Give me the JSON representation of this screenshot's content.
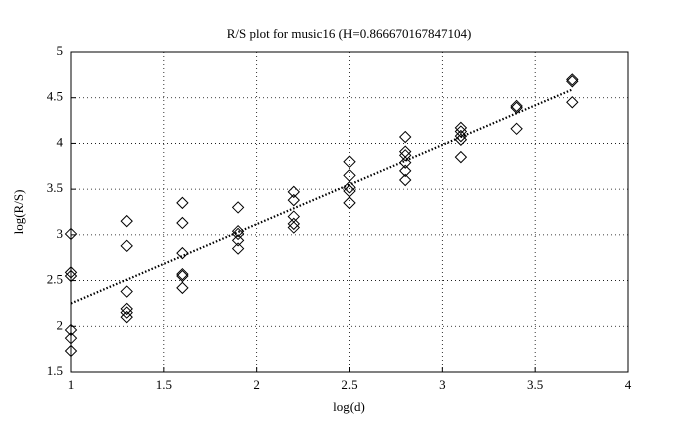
{
  "chart_data": {
    "type": "scatter",
    "title": "R/S plot for music16 (H=0.866670167847104)",
    "x_label": "log(d)",
    "y_label": "log(R/S)",
    "xlim": [
      1,
      4
    ],
    "ylim": [
      1.5,
      5
    ],
    "xticks": [
      1,
      1.5,
      2,
      2.5,
      3,
      3.5,
      4
    ],
    "yticks": [
      1.5,
      2,
      2.5,
      3,
      3.5,
      4,
      4.5,
      5
    ],
    "grid": true,
    "series": [
      {
        "color": "#000000",
        "marker": "diamond",
        "x": [
          1,
          1,
          1,
          1,
          1,
          1,
          1.3,
          1.3,
          1.3,
          1.3,
          1.3,
          1.3,
          1.6,
          1.6,
          1.6,
          1.6,
          1.6,
          1.6,
          1.9,
          1.9,
          1.9,
          1.9,
          1.9,
          2.2,
          2.2,
          2.2,
          2.2,
          2.2,
          2.5,
          2.5,
          2.5,
          2.5,
          2.5,
          2.8,
          2.8,
          2.8,
          2.8,
          2.8,
          2.8,
          3.1,
          3.1,
          3.1,
          3.1,
          3.1,
          3.4,
          3.4,
          3.4,
          3.7,
          3.7,
          3.7
        ],
        "values": [
          3.01,
          2.59,
          2.55,
          1.96,
          1.87,
          1.73,
          3.15,
          2.88,
          2.38,
          2.19,
          2.15,
          2.1,
          3.35,
          3.13,
          2.8,
          2.57,
          2.55,
          2.42,
          3.3,
          3.04,
          3.01,
          2.94,
          2.85,
          3.47,
          3.38,
          3.2,
          3.12,
          3.08,
          3.8,
          3.65,
          3.52,
          3.48,
          3.35,
          4.07,
          3.91,
          3.87,
          3.79,
          3.7,
          3.6,
          4.17,
          4.13,
          4.08,
          4.04,
          3.85,
          4.41,
          4.39,
          4.16,
          4.7,
          4.68,
          4.45
        ]
      },
      {
        "color": "#000000",
        "line_style": "dotted",
        "x": [
          1,
          3.7
        ],
        "values": [
          2.25,
          4.59
        ]
      }
    ]
  }
}
